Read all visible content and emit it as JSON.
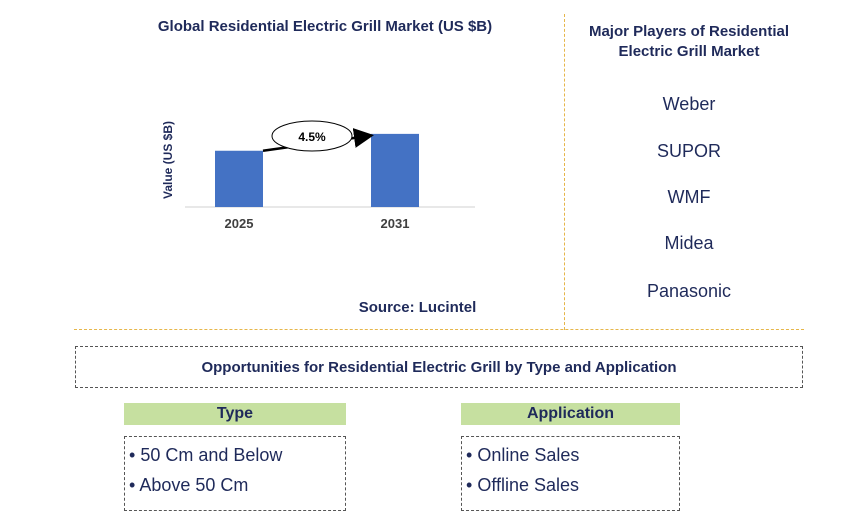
{
  "chart_data": {
    "type": "bar",
    "title": "Global Residential Electric Grill Market (US $B)",
    "ylabel": "Value (US $B)",
    "categories": [
      "2025",
      "2031"
    ],
    "values": [
      1.0,
      1.3
    ],
    "ylim": [
      0,
      1.6
    ],
    "annotation": "4.5%",
    "bar_color": "#4472c4",
    "source": "Source: Lucintel"
  },
  "players": {
    "title": "Major Players of Residential Electric Grill Market",
    "items": [
      "Weber",
      "SUPOR",
      "WMF",
      "Midea",
      "Panasonic"
    ]
  },
  "opportunities": {
    "title": "Opportunities for Residential Electric Grill by Type and Application",
    "segments": [
      {
        "heading": "Type",
        "items": [
          "50 Cm and Below",
          "Above 50 Cm"
        ]
      },
      {
        "heading": "Application",
        "items": [
          "Online Sales",
          "Offline Sales"
        ]
      }
    ]
  },
  "colors": {
    "text": "#1f2a5a",
    "divider": "#e6b64a",
    "segment_header": "#c6e0a0"
  }
}
